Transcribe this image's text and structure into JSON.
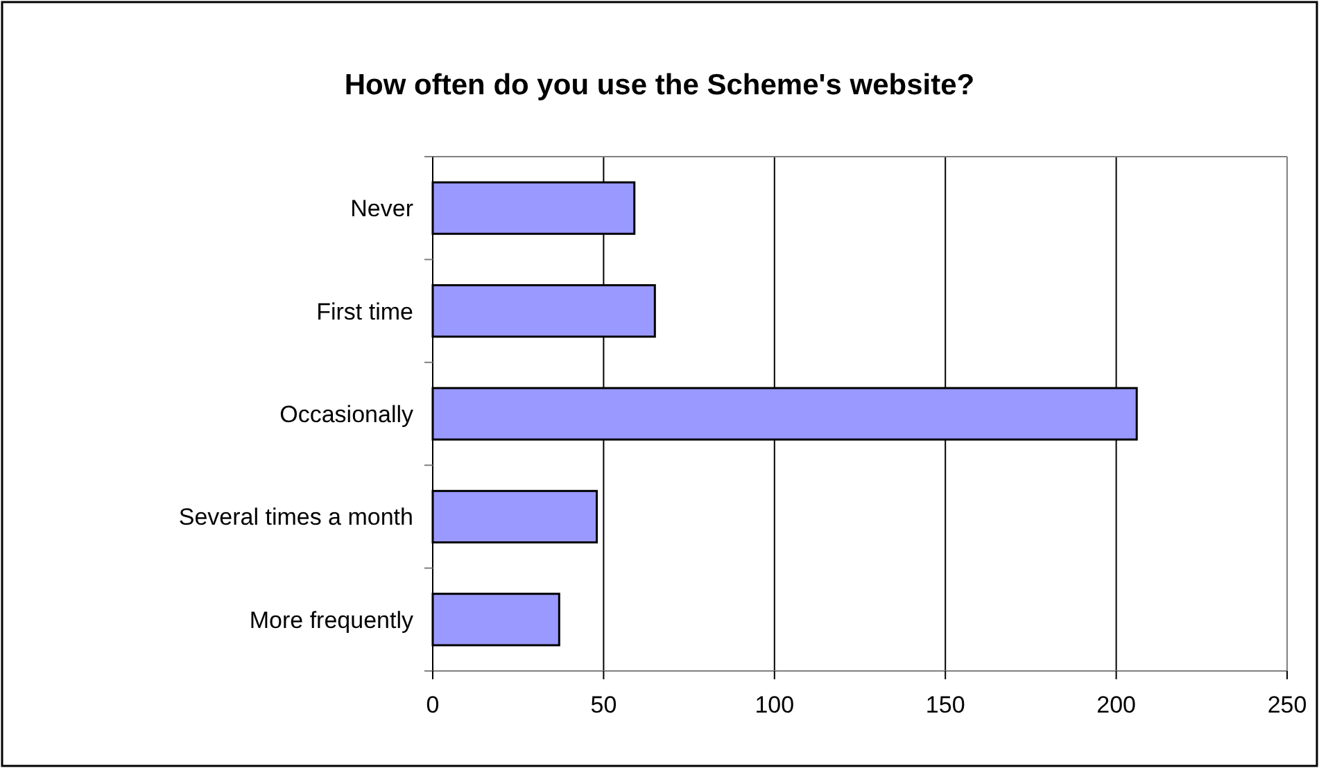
{
  "chart_data": {
    "type": "bar",
    "orientation": "horizontal",
    "title": "How often do you use the Scheme's website?",
    "categories": [
      "Never",
      "First time",
      "Occasionally",
      "Several times a month",
      "More frequently"
    ],
    "values": [
      59,
      65,
      206,
      48,
      37
    ],
    "color": "#9999ff",
    "xlim": [
      0,
      250
    ],
    "xticks": [
      0,
      50,
      100,
      150,
      200,
      250
    ],
    "grid": "x"
  }
}
